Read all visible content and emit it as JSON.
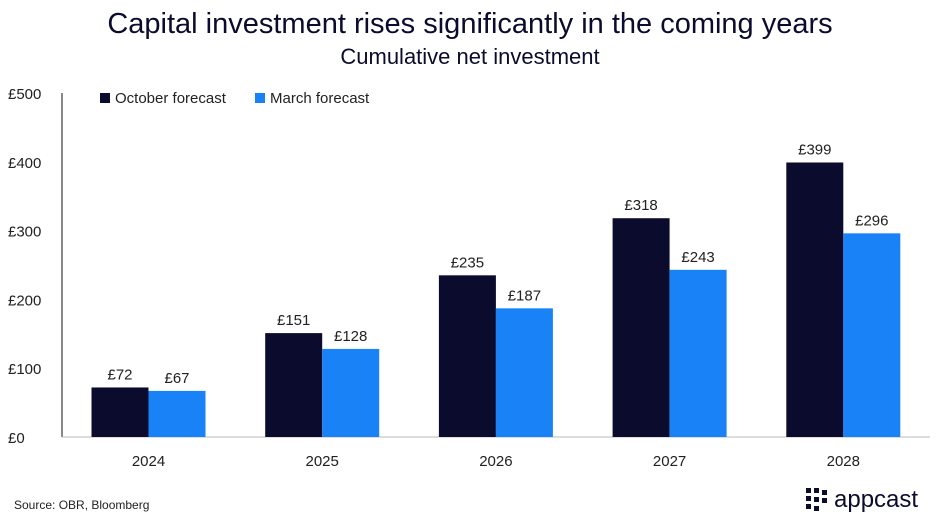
{
  "title": "Capital investment rises significantly in the coming years",
  "subtitle": "Cumulative net investment",
  "source": "Source: OBR, Bloomberg",
  "logo_text": "appcast",
  "chart_data": {
    "type": "bar",
    "title": "Capital investment rises significantly in the coming years",
    "subtitle": "Cumulative net investment",
    "categories": [
      "2024",
      "2025",
      "2026",
      "2027",
      "2028"
    ],
    "series": [
      {
        "name": "October forecast",
        "color": "#0b0b2e",
        "values": [
          72,
          151,
          235,
          318,
          399
        ],
        "labels": [
          "£72",
          "£151",
          "£235",
          "£318",
          "£399"
        ]
      },
      {
        "name": "March forecast",
        "color": "#1a82f7",
        "values": [
          67,
          128,
          187,
          243,
          296
        ],
        "labels": [
          "£67",
          "£128",
          "£187",
          "£243",
          "£296"
        ]
      }
    ],
    "ylim": [
      0,
      500
    ],
    "yticks": [
      0,
      100,
      200,
      300,
      400,
      500
    ],
    "ytick_labels": [
      "£0",
      "£100",
      "£200",
      "£300",
      "£400",
      "£500"
    ],
    "grid": false,
    "legend": "top-left"
  }
}
